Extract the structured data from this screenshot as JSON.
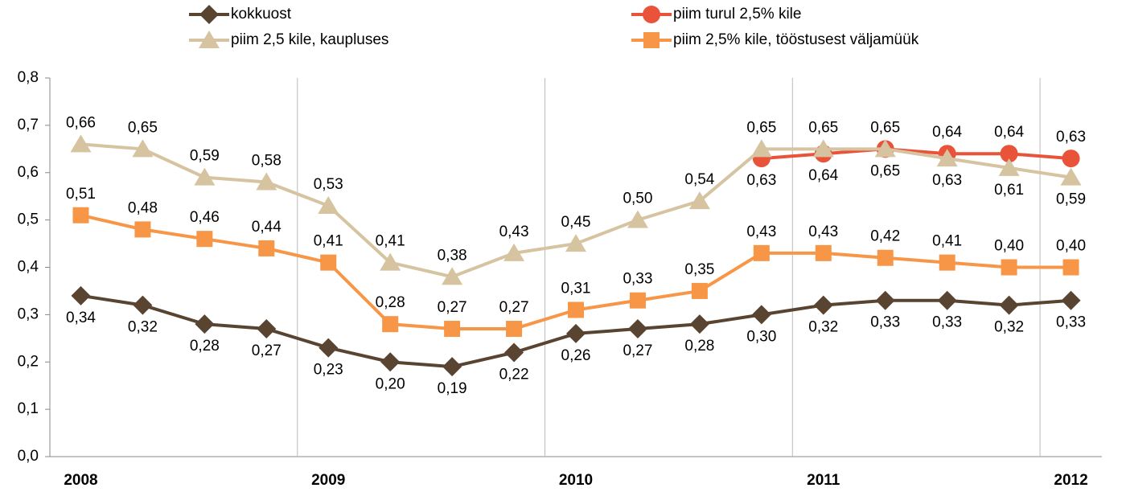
{
  "chart_data": {
    "type": "line",
    "categories": [
      "2008",
      null,
      null,
      null,
      "2009",
      null,
      null,
      null,
      "2010",
      null,
      null,
      null,
      "2011",
      null,
      null,
      null,
      "2012"
    ],
    "ylim": [
      0,
      0.8
    ],
    "yticks": [
      {
        "value": 0,
        "label": "0,0"
      },
      {
        "value": 0.1,
        "label": "0,1"
      },
      {
        "value": 0.2,
        "label": "0,2"
      },
      {
        "value": 0.3,
        "label": "0,3"
      },
      {
        "value": 0.4,
        "label": "0,4"
      },
      {
        "value": 0.5,
        "label": "0,5"
      },
      {
        "value": 0.6,
        "label": "0,6"
      },
      {
        "value": 0.7,
        "label": "0,7"
      },
      {
        "value": 0.8,
        "label": "0,8"
      }
    ],
    "grid": false,
    "series": [
      {
        "name": "kokkuost",
        "color": "#594432",
        "marker": "diamond",
        "values": [
          0.34,
          0.32,
          0.28,
          0.27,
          0.23,
          0.2,
          0.19,
          0.22,
          0.26,
          0.27,
          0.28,
          0.3,
          0.32,
          0.33,
          0.33,
          0.32,
          0.33
        ],
        "value_labels": [
          "0,34",
          "0,32",
          "0,28",
          "0,27",
          "0,23",
          "0,20",
          "0,19",
          "0,22",
          "0,26",
          "0,27",
          "0,28",
          "0,30",
          "0,32",
          "0,33",
          "0,33",
          "0,32",
          "0,33"
        ]
      },
      {
        "name": "piim turul 2,5% kile",
        "color": "#e8533a",
        "marker": "circle",
        "values": [
          null,
          null,
          null,
          null,
          null,
          null,
          null,
          null,
          null,
          null,
          null,
          0.63,
          0.64,
          0.65,
          0.64,
          0.64,
          0.63
        ],
        "value_labels": [
          null,
          null,
          null,
          null,
          null,
          null,
          null,
          null,
          null,
          null,
          null,
          "0,63",
          "0,64",
          "0,65",
          "0,64",
          "0,64",
          "0,63"
        ]
      },
      {
        "name": "piim 2,5 kile, kaupluses",
        "color": "#d6c3a0",
        "marker": "triangle",
        "values": [
          0.66,
          0.65,
          0.59,
          0.58,
          0.53,
          0.41,
          0.38,
          0.43,
          0.45,
          0.5,
          0.54,
          0.65,
          0.65,
          0.65,
          0.63,
          0.61,
          0.59
        ],
        "value_labels": [
          "0,66",
          "0,65",
          "0,59",
          "0,58",
          "0,53",
          "0,41",
          "0,38",
          "0,43",
          "0,45",
          "0,50",
          "0,54",
          "0,65",
          "0,65",
          "0,65",
          "0,63",
          "0,61",
          "0,59"
        ]
      },
      {
        "name": "piim 2,5% kile, tööstusest väljamüük",
        "color": "#f79646",
        "marker": "square",
        "values": [
          0.51,
          0.48,
          0.46,
          0.44,
          0.41,
          0.28,
          0.27,
          0.27,
          0.31,
          0.33,
          0.35,
          0.43,
          0.43,
          0.42,
          0.41,
          0.4,
          0.4
        ],
        "value_labels": [
          "0,51",
          "0,48",
          "0,46",
          "0,44",
          "0,41",
          "0,28",
          "0,27",
          "0,27",
          "0,31",
          "0,33",
          "0,35",
          "0,43",
          "0,43",
          "0,42",
          "0,41",
          "0,40",
          "0,40"
        ]
      }
    ]
  }
}
